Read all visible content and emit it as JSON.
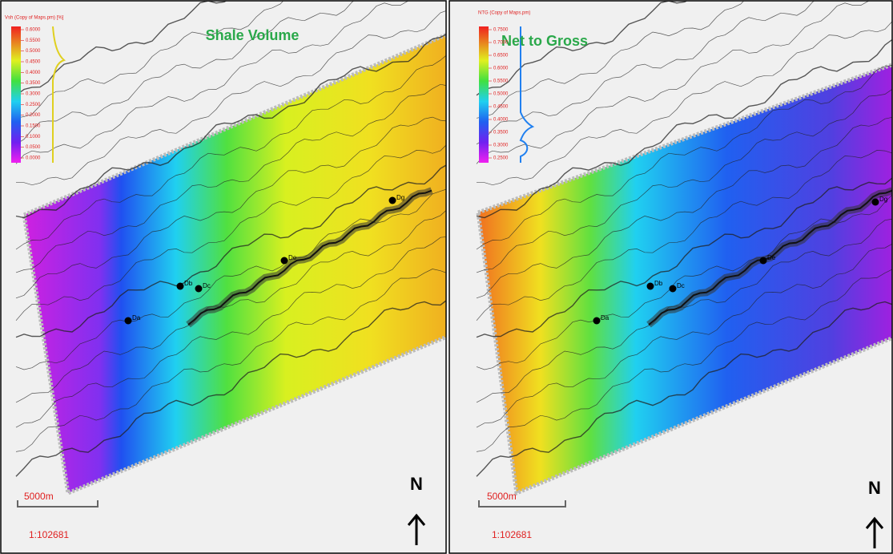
{
  "panels": [
    {
      "title": "Shale Volume",
      "legend_title": "Vsh (Copy of Maps.pm) [%]",
      "legend_labels": [
        "0.6000",
        "0.5500",
        "0.5000",
        "0.4500",
        "0.4000",
        "0.3500",
        "0.3000",
        "0.2500",
        "0.2000",
        "0.1500",
        "0.1000",
        "0.0500",
        "0.0000"
      ],
      "wells": [
        "Da",
        "Db",
        "Dc",
        "De",
        "Dg"
      ],
      "scale_bar": "5000m",
      "scale": "1:102681",
      "north": "N"
    },
    {
      "title": "Net to Gross",
      "legend_title": "NTG (Copy of Maps.pm)",
      "legend_labels": [
        "0.7500",
        "0.7000",
        "0.6500",
        "0.6000",
        "0.5500",
        "0.5000",
        "0.4500",
        "0.4000",
        "0.3500",
        "0.3000",
        "0.2500"
      ],
      "wells": [
        "Da",
        "Db",
        "Dc",
        "De",
        "Dg"
      ],
      "scale_bar": "5000m",
      "scale": "1:102681",
      "north": "N"
    }
  ]
}
